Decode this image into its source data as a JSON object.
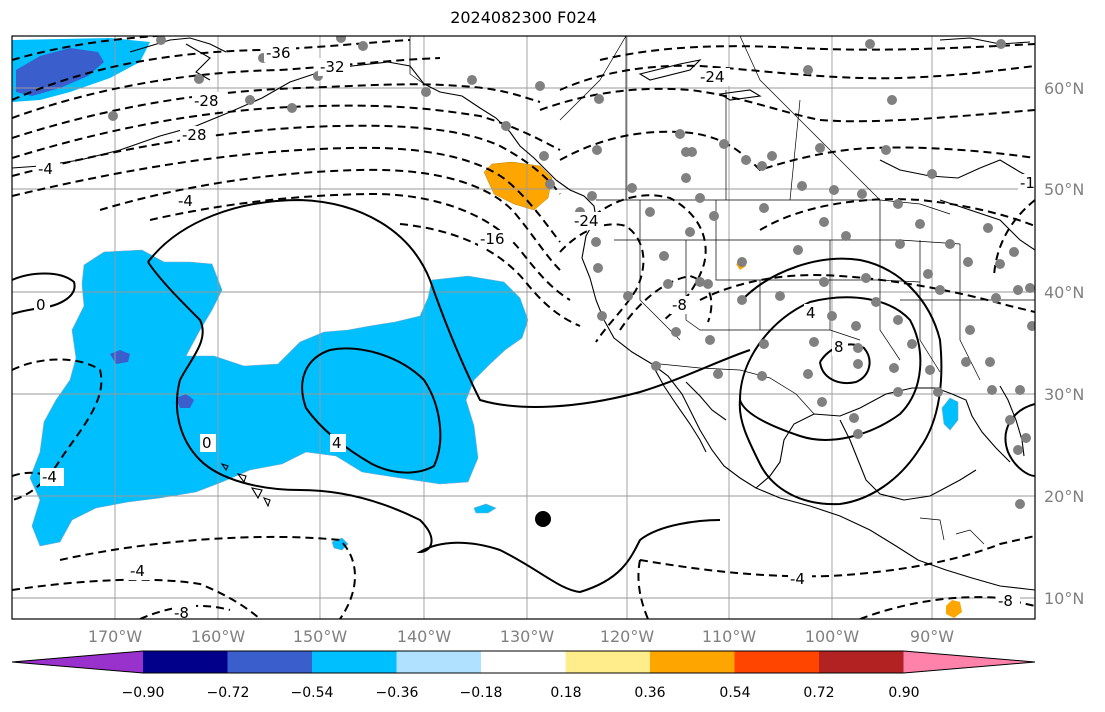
{
  "title": "2024082300 F024",
  "lon_labels": [
    "170°W",
    "160°W",
    "150°W",
    "140°W",
    "130°W",
    "120°W",
    "110°W",
    "100°W",
    "90°W"
  ],
  "lat_labels": [
    "60°N",
    "50°N",
    "40°N",
    "30°N",
    "20°N",
    "10°N"
  ],
  "colorbar": {
    "tick_labels": [
      "−0.90",
      "−0.72",
      "−0.54",
      "−0.36",
      "−0.18",
      "0.18",
      "0.36",
      "0.54",
      "0.72",
      "0.90"
    ],
    "colors": [
      "#9932cc",
      "#00008b",
      "#3a5fcd",
      "#00bfff",
      "#b0e2ff",
      "#ffffff",
      "#ffec8b",
      "#ffa500",
      "#ff4500",
      "#b22222",
      "#ff82ab"
    ]
  },
  "contour_labels": {
    "neg": [
      "-36",
      "-32",
      "-28",
      "-28",
      "-24",
      "-16",
      "-4",
      "-4",
      "-4",
      "-4",
      "-4",
      "-8",
      "-8",
      "-24",
      "-8",
      "-1"
    ],
    "pos": [
      "0",
      "0",
      "4",
      "4",
      "8"
    ]
  }
}
